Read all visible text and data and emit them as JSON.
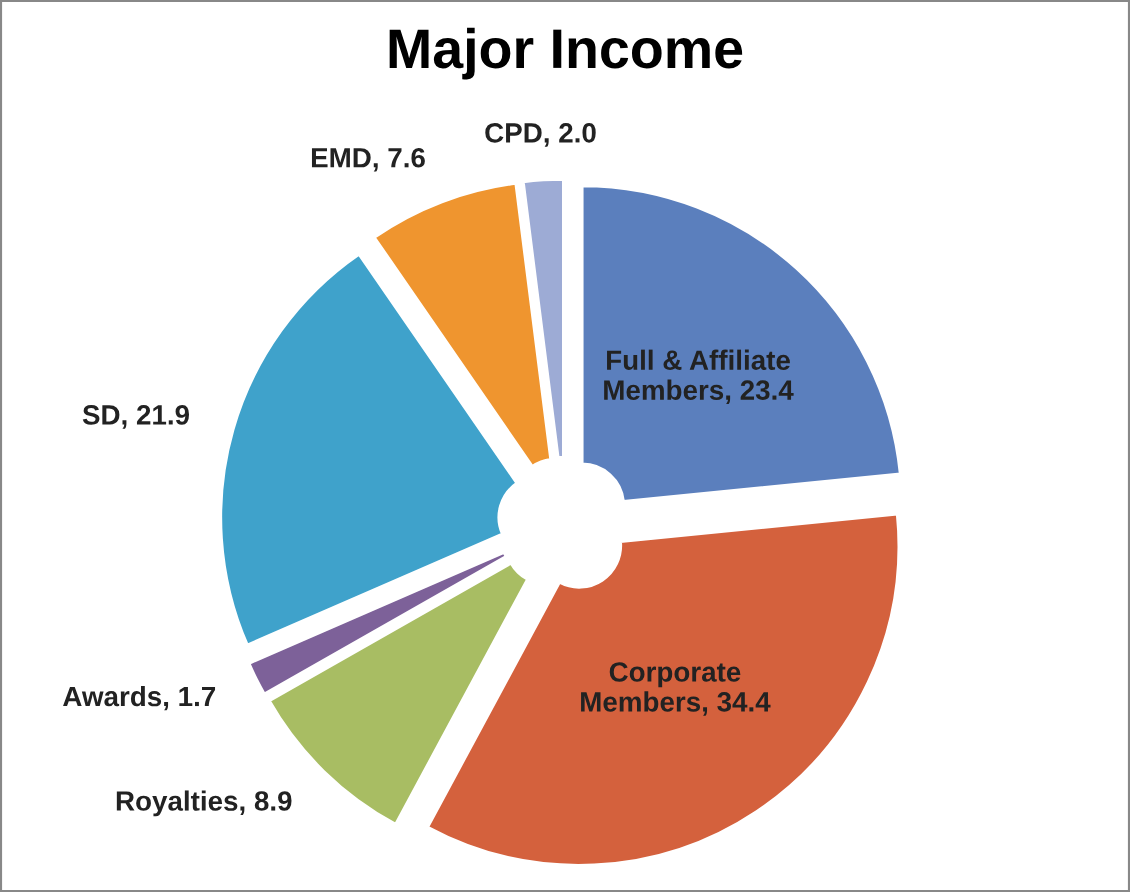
{
  "chart_data": {
    "type": "donut",
    "title": "Major Income",
    "categories": [
      "Full & Affiliate Members",
      "Corporate Members",
      "Royalties",
      "Awards",
      "SD",
      "EMD",
      "CPD"
    ],
    "values": [
      23.4,
      34.4,
      8.9,
      1.7,
      21.9,
      7.6,
      2.0
    ],
    "value_labels": [
      "23.4",
      "34.4",
      "8.9",
      "1.7",
      "21.9",
      "7.6",
      "2.0"
    ],
    "colors": [
      "#5b7fbd",
      "#d4613d",
      "#a8bd63",
      "#7d6199",
      "#3fa2cb",
      "#ef952f",
      "#9dabd5"
    ],
    "legend": false
  }
}
